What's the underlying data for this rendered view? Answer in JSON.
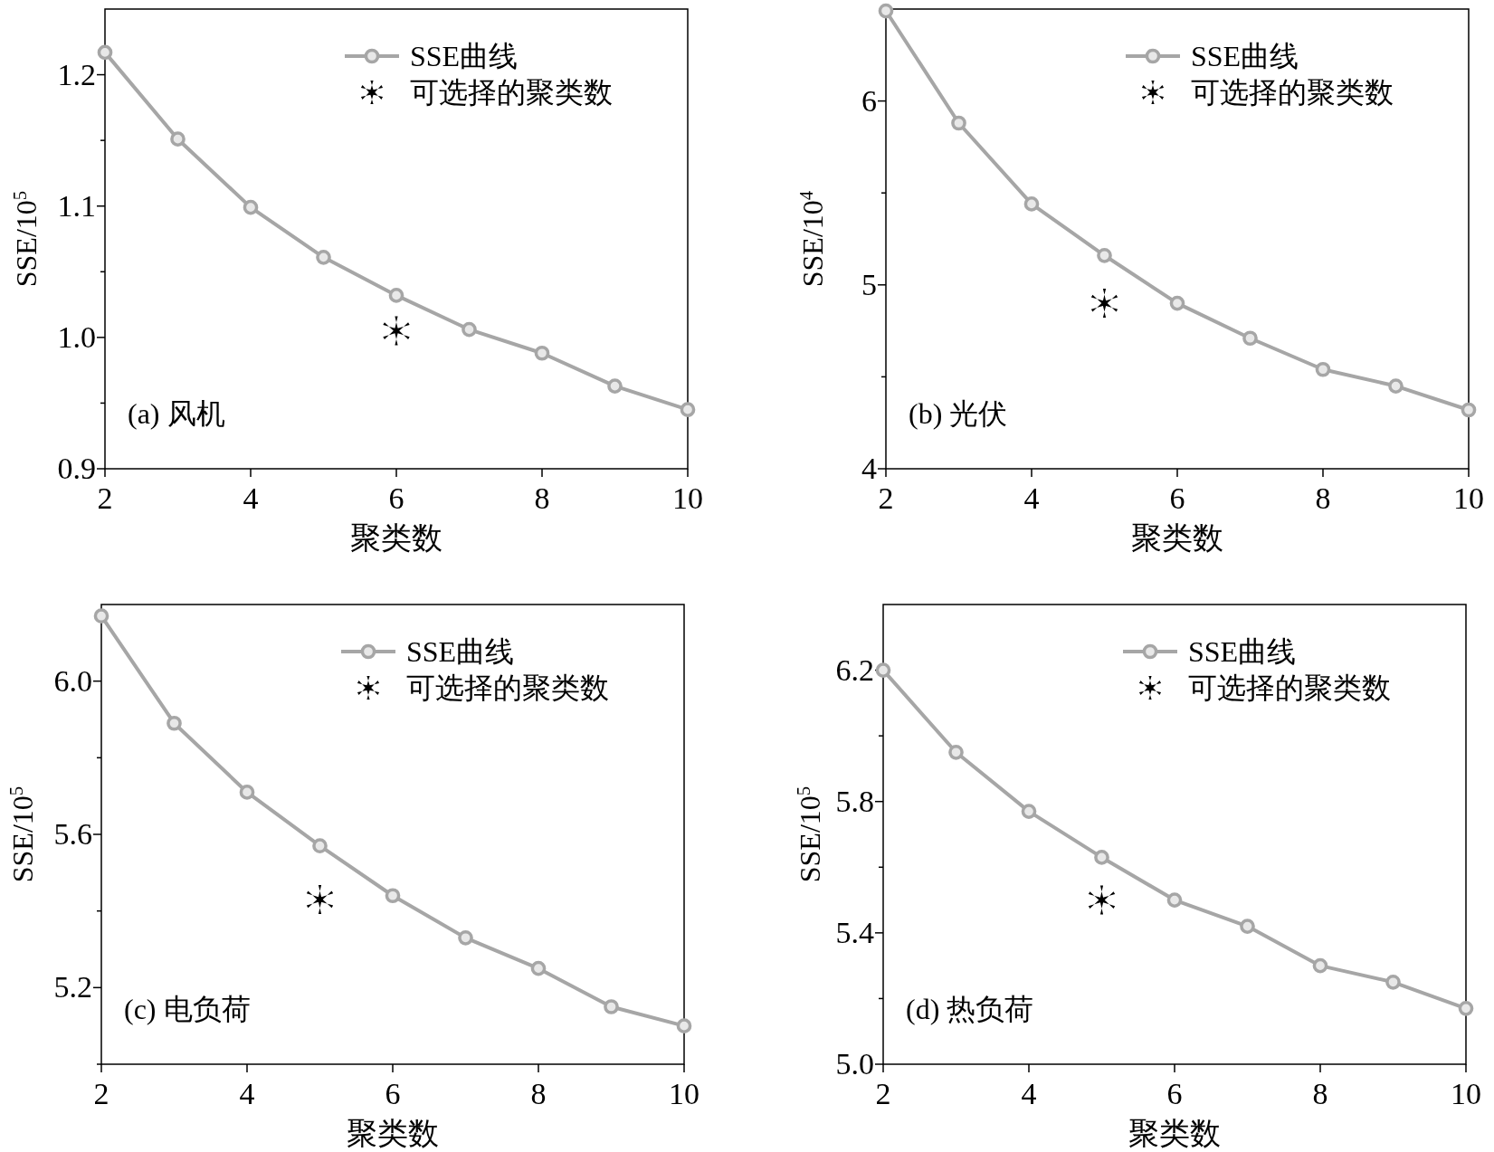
{
  "chart_data": [
    {
      "type": "line",
      "xlabel": "聚类数",
      "ylabel": "SSE/10$^{5}$",
      "annotations": [
        "(a) 风机"
      ],
      "legend": "top right",
      "xlim": [
        2,
        10
      ],
      "xticks": [
        2,
        4,
        6,
        8,
        10
      ],
      "ylim": [
        0.9,
        1.25
      ],
      "yticks": [
        {
          "value": 0.9,
          "label": "0.9"
        },
        {
          "value": 0.95,
          "label": null
        },
        {
          "value": 1.0,
          "label": "1.0"
        },
        {
          "value": 1.05,
          "label": null
        },
        {
          "value": 1.1,
          "label": "1.1"
        },
        {
          "value": 1.15,
          "label": null
        },
        {
          "value": 1.2,
          "label": "1.2"
        }
      ],
      "series": [
        {
          "name": "SSE曲线",
          "type": "line",
          "color": "#a6a6a6",
          "marker": "circle",
          "x": [
            2,
            3,
            4,
            5,
            6,
            7,
            8,
            9,
            10
          ],
          "values": [
            1.217,
            1.151,
            1.099,
            1.061,
            1.032,
            1.006,
            0.988,
            0.963,
            0.945
          ]
        },
        {
          "name": "可选择的聚类数",
          "type": "scatter",
          "color": "#000000",
          "marker": "cross",
          "x": [
            6
          ],
          "values": [
            1.005
          ]
        }
      ]
    },
    {
      "type": "line",
      "xlabel": "聚类数",
      "ylabel": "SSE/10$^{4}$",
      "annotations": [
        "(b) 光伏"
      ],
      "legend": "top right",
      "xlim": [
        2,
        10
      ],
      "xticks": [
        2,
        4,
        6,
        8,
        10
      ],
      "ylim": [
        4,
        6.5
      ],
      "yticks": [
        4,
        {
          "value": 4.5,
          "label": null
        },
        5,
        {
          "value": 5.5,
          "label": null
        },
        6
      ],
      "series": [
        {
          "name": "SSE曲线",
          "type": "line",
          "color": "#a6a6a6",
          "marker": "circle",
          "x": [
            2,
            3,
            4,
            5,
            6,
            7,
            8,
            9,
            10
          ],
          "values": [
            6.49,
            5.88,
            5.44,
            5.16,
            4.9,
            4.71,
            4.54,
            4.45,
            4.32
          ]
        },
        {
          "name": "可选择的聚类数",
          "type": "scatter",
          "color": "#000000",
          "marker": "cross",
          "x": [
            5
          ],
          "values": [
            4.9
          ]
        }
      ]
    },
    {
      "type": "line",
      "xlabel": "聚类数",
      "ylabel": "SSE/10$^{5}$",
      "annotations": [
        "(c) 电负荷"
      ],
      "legend": "top right",
      "xlim": [
        2,
        10
      ],
      "xticks": [
        2,
        4,
        6,
        8,
        10
      ],
      "ylim": [
        5.0,
        6.2
      ],
      "yticks": [
        {
          "value": 5.0,
          "label": null
        },
        {
          "value": 5.2,
          "label": "5.2"
        },
        {
          "value": 5.4,
          "label": null
        },
        {
          "value": 5.6,
          "label": "5.6"
        },
        {
          "value": 5.8,
          "label": null
        },
        {
          "value": 6.0,
          "label": "6.0"
        }
      ],
      "series": [
        {
          "name": "SSE曲线",
          "type": "line",
          "color": "#a6a6a6",
          "marker": "circle",
          "x": [
            2,
            3,
            4,
            5,
            6,
            7,
            8,
            9,
            10
          ],
          "values": [
            6.17,
            5.89,
            5.71,
            5.57,
            5.44,
            5.33,
            5.25,
            5.15,
            5.1
          ]
        },
        {
          "name": "可选择的聚类数",
          "type": "scatter",
          "color": "#000000",
          "marker": "cross",
          "x": [
            5
          ],
          "values": [
            5.43
          ]
        }
      ]
    },
    {
      "type": "line",
      "xlabel": "聚类数",
      "ylabel": "SSE/10$^{5}$",
      "annotations": [
        "(d) 热负荷"
      ],
      "legend": "top right",
      "xlim": [
        2,
        10
      ],
      "xticks": [
        2,
        4,
        6,
        8,
        10
      ],
      "ylim": [
        5.0,
        6.4
      ],
      "yticks": [
        {
          "value": 5.0,
          "label": "5.0"
        },
        {
          "value": 5.2,
          "label": null
        },
        {
          "value": 5.4,
          "label": "5.4"
        },
        {
          "value": 5.6,
          "label": null
        },
        {
          "value": 5.8,
          "label": "5.8"
        },
        {
          "value": 6.0,
          "label": null
        },
        {
          "value": 6.2,
          "label": "6.2"
        }
      ],
      "series": [
        {
          "name": "SSE曲线",
          "type": "line",
          "color": "#a6a6a6",
          "marker": "circle",
          "x": [
            2,
            3,
            4,
            5,
            6,
            7,
            8,
            9,
            10
          ],
          "values": [
            6.2,
            5.95,
            5.77,
            5.63,
            5.5,
            5.42,
            5.3,
            5.25,
            5.17
          ]
        },
        {
          "name": "可选择的聚类数",
          "type": "scatter",
          "color": "#000000",
          "marker": "cross",
          "x": [
            5
          ],
          "values": [
            5.5
          ]
        }
      ]
    }
  ]
}
